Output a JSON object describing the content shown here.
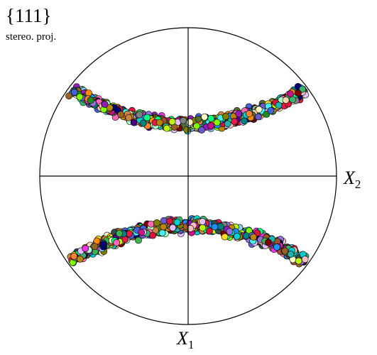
{
  "figure": {
    "title": "{111}",
    "subtitle": "stereo. proj.",
    "axis_x2": {
      "symbol": "X",
      "subscript": "2"
    },
    "axis_x1": {
      "symbol": "X",
      "subscript": "1"
    }
  },
  "pole_figure": {
    "projection": "stereographic",
    "family": "{111}",
    "clusters": [
      {
        "name": "upper-band",
        "shape": "arc opening upward, ends near upper rim"
      },
      {
        "name": "lower-band",
        "shape": "arc opening downward, ends near lower rim"
      }
    ],
    "marker_colors": [
      "#e6194b",
      "#3cb44b",
      "#ffe119",
      "#4363d8",
      "#f58231",
      "#911eb4",
      "#46f0f0",
      "#f032e6",
      "#bcf60c",
      "#fabebe",
      "#008080",
      "#e6beff",
      "#9a6324",
      "#fffac8",
      "#800000",
      "#aaffc3",
      "#808000",
      "#ffd8b1",
      "#000075",
      "#808080",
      "#2f4f4f",
      "#556b2f",
      "#00ced1",
      "#ff8c00",
      "#9370db",
      "#3cb371",
      "#ff69b4",
      "#1e90ff",
      "#cd853f",
      "#20b2aa",
      "#7fff00",
      "#dc143c",
      "#4b0082",
      "#87ceeb",
      "#b8860b",
      "#00ff7f",
      "#c71585",
      "#6a5acd",
      "#228b22",
      "#a0522d"
    ]
  }
}
